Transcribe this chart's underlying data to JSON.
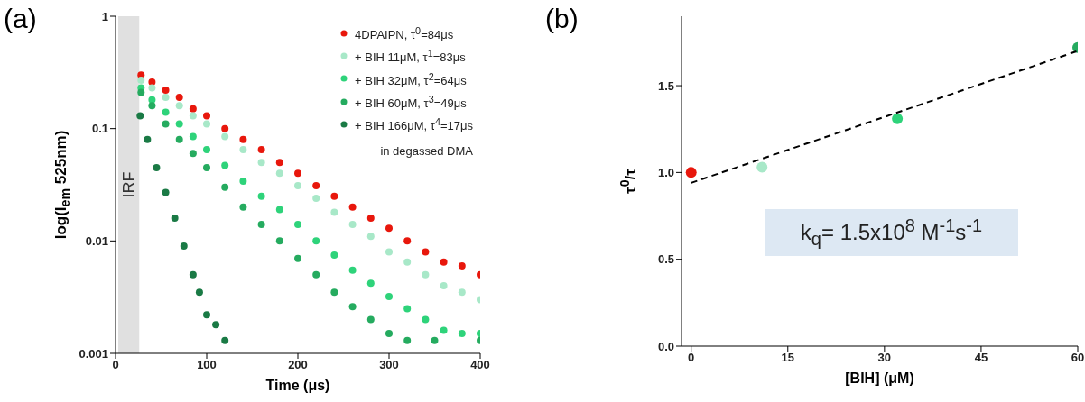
{
  "chart_data": [
    {
      "type": "scatter",
      "title": "(a)",
      "xlabel": "Time (μs)",
      "ylabel": "log(I$_{em}$ 525nm)",
      "log": "y",
      "xlim": [
        0,
        400
      ],
      "xticks": [
        0,
        100,
        200,
        300,
        400
      ],
      "ylim": [
        0.001,
        1
      ],
      "yticks": [
        0.001,
        0.01,
        0.1,
        1
      ],
      "legend": "top right",
      "marker": "circle",
      "annotations": [
        "in degassed DMA"
      ],
      "bands": [
        {
          "axis": "x",
          "from": 3,
          "to": 26,
          "label": "IRF",
          "color": "#e0e0e0"
        }
      ],
      "series": [
        {
          "name": "4DPAIPN, τ$^{0}$=84μs",
          "color": "#e8170c",
          "x": [
            28,
            40,
            55,
            70,
            85,
            100,
            120,
            140,
            160,
            180,
            200,
            220,
            240,
            260,
            280,
            300,
            320,
            340,
            360,
            380,
            400
          ],
          "values": [
            0.3,
            0.26,
            0.22,
            0.19,
            0.15,
            0.13,
            0.1,
            0.08,
            0.065,
            0.05,
            0.04,
            0.031,
            0.025,
            0.02,
            0.016,
            0.013,
            0.01,
            0.008,
            0.0065,
            0.006,
            0.005
          ]
        },
        {
          "name": "+ BIH 11μM, τ$^{1}$=83μs",
          "color": "#a8e8c8",
          "x": [
            28,
            40,
            55,
            70,
            85,
            100,
            120,
            140,
            160,
            180,
            200,
            220,
            240,
            260,
            280,
            300,
            320,
            340,
            360,
            380,
            400
          ],
          "values": [
            0.27,
            0.23,
            0.19,
            0.16,
            0.13,
            0.11,
            0.085,
            0.065,
            0.05,
            0.04,
            0.031,
            0.024,
            0.018,
            0.014,
            0.011,
            0.008,
            0.0065,
            0.005,
            0.004,
            0.0035,
            0.003
          ]
        },
        {
          "name": "+ BIH 32μM, τ$^{2}$=64μs",
          "color": "#2ed37a",
          "x": [
            28,
            40,
            55,
            70,
            85,
            100,
            120,
            140,
            160,
            180,
            200,
            220,
            240,
            260,
            280,
            300,
            320,
            340,
            360,
            380,
            400
          ],
          "values": [
            0.23,
            0.18,
            0.14,
            0.11,
            0.085,
            0.065,
            0.047,
            0.034,
            0.025,
            0.019,
            0.014,
            0.01,
            0.0075,
            0.0055,
            0.0042,
            0.0032,
            0.0025,
            0.002,
            0.0016,
            0.0015,
            0.0015
          ]
        },
        {
          "name": "+ BIH 60μM, τ$^{3}$=49μs",
          "color": "#25ab5f",
          "x": [
            28,
            40,
            55,
            70,
            85,
            100,
            120,
            140,
            160,
            180,
            200,
            220,
            240,
            260,
            280,
            300,
            320,
            350,
            400
          ],
          "values": [
            0.21,
            0.16,
            0.11,
            0.08,
            0.06,
            0.045,
            0.03,
            0.02,
            0.014,
            0.01,
            0.007,
            0.005,
            0.0035,
            0.0026,
            0.002,
            0.0015,
            0.0013,
            0.0013,
            0.0013
          ]
        },
        {
          "name": "+ BIH 166μM, τ$^{4}$=17μs",
          "color": "#1a7a45",
          "x": [
            27,
            35,
            45,
            55,
            65,
            75,
            85,
            92,
            100,
            110,
            120
          ],
          "values": [
            0.13,
            0.08,
            0.045,
            0.027,
            0.016,
            0.009,
            0.005,
            0.0035,
            0.0022,
            0.0018,
            0.0013
          ]
        }
      ]
    },
    {
      "type": "scatter",
      "title": "(b)",
      "xlabel": "[BIH] (μM)",
      "ylabel": "τ$^{0}$/τ",
      "xlim": [
        -1.5,
        60
      ],
      "xticks": [
        0,
        15,
        30,
        45,
        60
      ],
      "ylim": [
        0,
        1.9
      ],
      "yticks": [
        {
          "value": 0,
          "label": "0.0"
        },
        {
          "value": 0.5,
          "label": "0.5"
        },
        {
          "value": 1,
          "label": "1.0"
        },
        {
          "value": 1.5,
          "label": "1.5"
        }
      ],
      "marker": "circle",
      "annotations": [
        "k$_{q}$= 1.5x10$^{8}$ M$^{-1}$s$^{-1}$"
      ],
      "series": [
        {
          "type": "scatter",
          "x": [
            0,
            11,
            32,
            60
          ],
          "values": [
            1.0,
            1.03,
            1.31,
            1.72
          ],
          "colors": [
            "#e8170c",
            "#a8e8c8",
            "#2ed37a",
            "#25ab5f"
          ]
        },
        {
          "type": "line",
          "x": [
            0,
            60
          ],
          "values": [
            0.94,
            1.7
          ],
          "color": "#000000",
          "line_style": "dashed",
          "marker": "none"
        }
      ]
    }
  ]
}
